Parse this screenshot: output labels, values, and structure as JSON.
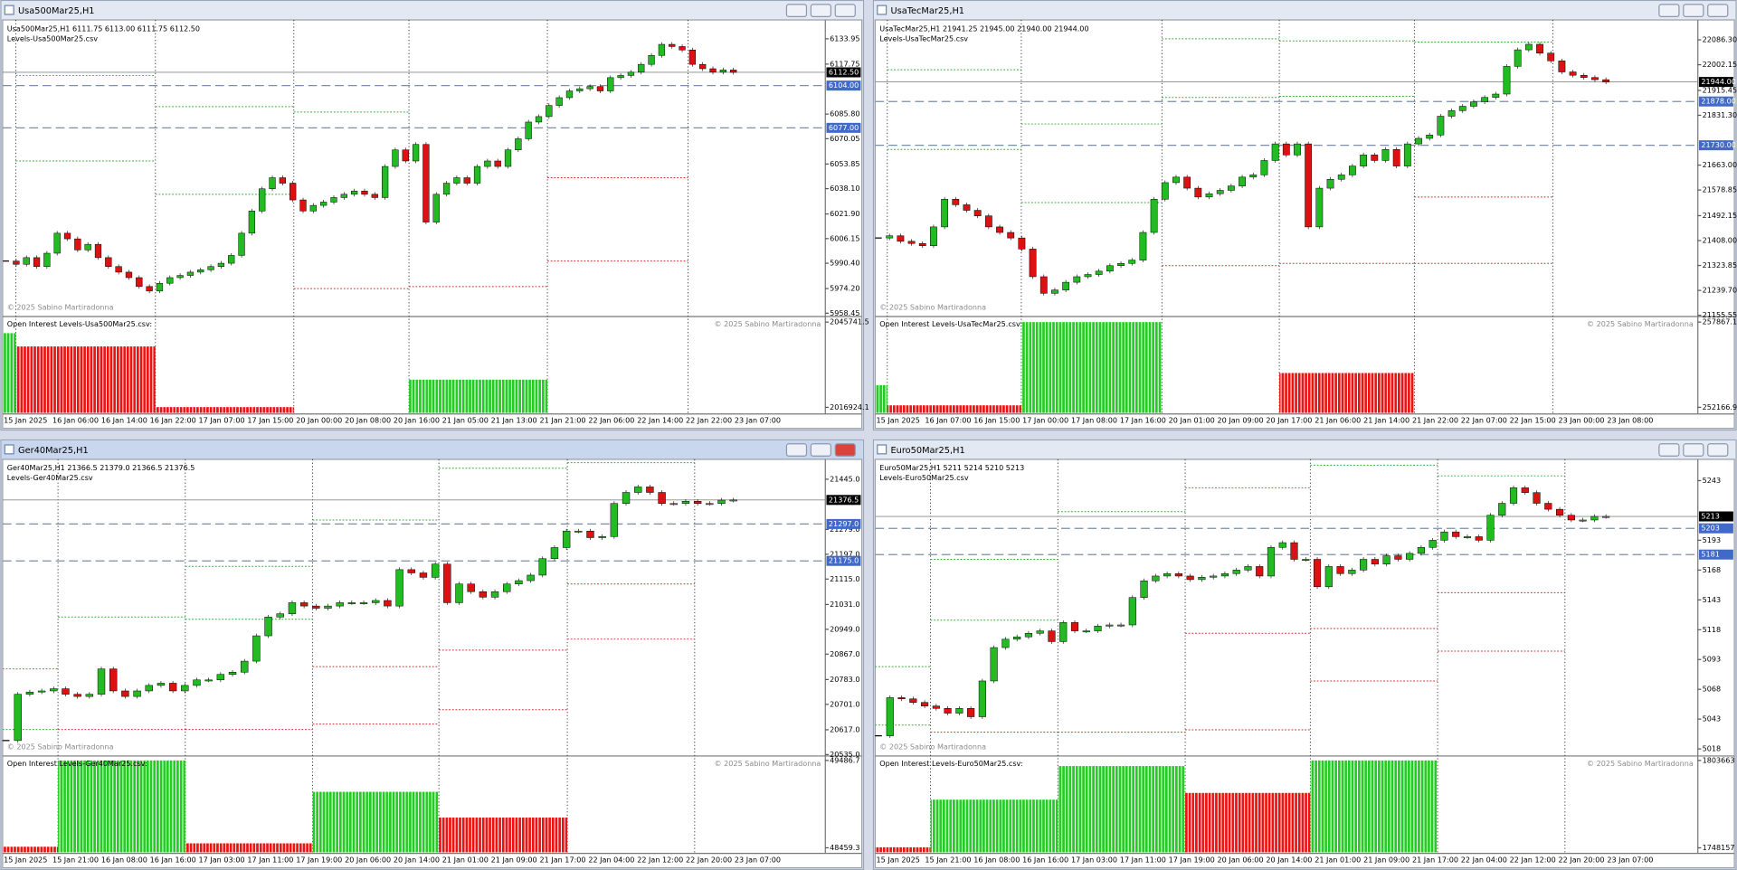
{
  "windows": [
    {
      "title": "Usa500Mar25,H1",
      "active": false,
      "chart_data": {
        "type": "candlestick",
        "header": "Usa500Mar25,H1  6111.75 6113.00 6111.75 6112.50",
        "subtitle": "Levels-Usa500Mar25.csv",
        "watermark": "© 2025 Sabino Martiradonna",
        "closes": [
          5991.8,
          5989.7,
          5994.0,
          5988.3,
          5996.8,
          6009.6,
          6006.0,
          5998.9,
          6002.5,
          5994.0,
          5988.3,
          5984.7,
          5981.2,
          5975.5,
          5972.6,
          5977.6,
          5981.2,
          5982.6,
          5984.7,
          5986.2,
          5988.3,
          5990.4,
          5995.4,
          6009.6,
          6023.8,
          6038.0,
          6045.1,
          6041.6,
          6030.9,
          6023.8,
          6027.4,
          6029.5,
          6032.4,
          6034.5,
          6036.6,
          6034.5,
          6032.4,
          6052.3,
          6062.9,
          6055.8,
          6066.4,
          6016.7,
          6034.5,
          6041.6,
          6045.1,
          6041.6,
          6052.3,
          6055.8,
          6052.3,
          6062.9,
          6070.0,
          6080.7,
          6084.2,
          6091.3,
          6096.3,
          6100.6,
          6102.0,
          6103.4,
          6100.6,
          6109.1,
          6110.5,
          6112.6,
          6117.6,
          6123.3,
          6130.4,
          6129.0,
          6126.8,
          6117.6,
          6114.8,
          6112.6,
          6114.0,
          6112.5
        ],
        "up_color": "#22bb22",
        "down_color": "#dd1111",
        "ylim": [
          5957.0,
          6144.6
        ],
        "yticks": [
          6133.95,
          6117.75,
          {
            "value": 6085.8,
            "label": "6085.80"
          },
          6070.05,
          6053.85,
          {
            "value": 6038.1,
            "label": "6038.10"
          },
          {
            "value": 6021.9,
            "label": "6021.90"
          },
          6006.15,
          {
            "value": 5990.4,
            "label": "5990.40"
          },
          {
            "value": 5974.2,
            "label": "5974.20"
          },
          5958.45
        ],
        "price_lines": [
          {
            "value": 6112.5,
            "label": "6112.50",
            "color": "#000000",
            "dashed": false
          },
          {
            "value": 6104,
            "label": "6104.00",
            "color": "#4169c8",
            "dashed": true
          },
          {
            "value": 6077,
            "label": "6077.00",
            "color": "#4169c8",
            "dashed": true
          }
        ],
        "levels": [
          {
            "color": "#3aa83a",
            "values": [
              6112.6,
              6110.5,
              6090.6,
              6087.1,
              null,
              null,
              null
            ]
          },
          {
            "color": "#3aa83a",
            "values": [
              null,
              6055.8,
              6034.5,
              null,
              null,
              null,
              null
            ]
          },
          {
            "color": "#cc3333",
            "values": [
              null,
              null,
              null,
              5974.2,
              5975.5,
              6045.1,
              null
            ]
          },
          {
            "color": "#cc3333",
            "values": [
              null,
              null,
              null,
              null,
              null,
              5991.8,
              null
            ]
          }
        ],
        "time_labels": [
          "15 Jan 2025",
          "16 Jan 06:00",
          "16 Jan 14:00",
          "16 Jan 22:00",
          "17 Jan 07:00",
          "17 Jan 15:00",
          "20 Jan 00:00",
          "20 Jan 08:00",
          "20 Jan 16:00",
          "21 Jan 05:00",
          "21 Jan 13:00",
          "21 Jan 21:00",
          "22 Jan 06:00",
          "22 Jan 14:00",
          "22 Jan 22:00",
          "23 Jan 07:00"
        ],
        "oi": {
          "label": "Open Interest Levels-Usa500Mar25.csv:",
          "watermark": "© 2025 Sabino Martiradonna",
          "ylim": [
            2015053,
            2047238
          ],
          "yticks": [
            2045741.5,
            2016924.1
          ],
          "values": [
            2042000,
            2037508,
            2017000,
            null,
            2026280,
            null,
            null
          ],
          "colors": [
            "#22cc22",
            "#ee1111",
            "#ee1111",
            null,
            "#22cc22",
            null,
            null
          ]
        }
      }
    },
    {
      "title": "UsaTecMar25,H1",
      "active": false,
      "chart_data": {
        "type": "candlestick",
        "header": "UsaTecMar25,H1  21941.25 21945.00 21940.00 21944.00",
        "subtitle": "Levels-UsaTecMar25.csv",
        "watermark": "© 2025 Sabino Martiradonna",
        "closes": [
          21416.8,
          21424.3,
          21405.6,
          21398.1,
          21390.7,
          21454.2,
          21547.7,
          21529.0,
          21510.3,
          21491.6,
          21454.2,
          21435.5,
          21416.8,
          21379.4,
          21285.9,
          21229.8,
          21241.1,
          21267.2,
          21285.9,
          21293.4,
          21304.7,
          21323.3,
          21330.8,
          21342.1,
          21435.5,
          21547.7,
          21603.8,
          21622.5,
          21585.1,
          21555.2,
          21566.4,
          21577.7,
          21592.6,
          21622.5,
          21630.0,
          21678.6,
          21734.7,
          21697.3,
          21734.7,
          21454.2,
          21585.1,
          21615.1,
          21630.0,
          21659.9,
          21697.3,
          21678.6,
          21716.0,
          21659.9,
          21734.7,
          21753.4,
          21764.7,
          21828.2,
          21847.0,
          21861.9,
          21876.9,
          21891.8,
          21903.1,
          21996.6,
          22052.6,
          22071.3,
          22041.4,
          22015.2,
          21977.9,
          21966.6,
          21959.1,
          21951.7,
          21944.0
        ],
        "up_color": "#22bb22",
        "down_color": "#dd1111",
        "ylim": [
          21155.0,
          22146.1
        ],
        "yticks": [
          {
            "value": 22086.3,
            "label": "22086.30"
          },
          22002.15,
          21915.45,
          {
            "value": 21831.3,
            "label": "21831.30"
          },
          {
            "value": 21663,
            "label": "21663.00"
          },
          21578.85,
          21492.15,
          {
            "value": 21408,
            "label": "21408.00"
          },
          21323.85,
          {
            "value": 21239.7,
            "label": "21239.70"
          },
          21155.55
        ],
        "price_lines": [
          {
            "value": 21944,
            "label": "21944.00",
            "color": "#000000",
            "dashed": false
          },
          {
            "value": 21878,
            "label": "21878.00",
            "color": "#4169c8",
            "dashed": true
          },
          {
            "value": 21730,
            "label": "21730.00",
            "color": "#4169c8",
            "dashed": true
          }
        ],
        "levels": [
          {
            "color": "#3aa83a",
            "values": [
              null,
              21985.3,
              21802.1,
              22090.0,
              22082.6,
              22078.8,
              null
            ]
          },
          {
            "color": "#3aa83a",
            "values": [
              null,
              21716.0,
              21536.5,
              21891.8,
              21895.5,
              null,
              null
            ]
          },
          {
            "color": "#cc3333",
            "values": [
              null,
              null,
              null,
              21323.3,
              21330.8,
              21555.2,
              null
            ]
          },
          {
            "color": "#cc3333",
            "values": [
              null,
              null,
              null,
              null,
              null,
              21330.8,
              null
            ]
          }
        ],
        "time_labels": [
          "15 Jan 2025",
          "16 Jan 07:00",
          "16 Jan 15:00",
          "17 Jan 00:00",
          "17 Jan 08:00",
          "17 Jan 16:00",
          "20 Jan 01:00",
          "20 Jan 09:00",
          "20 Jan 17:00",
          "21 Jan 06:00",
          "21 Jan 14:00",
          "21 Jan 22:00",
          "22 Jan 07:00",
          "22 Jan 15:00",
          "23 Jan 00:00",
          "23 Jan 08:00"
        ],
        "oi": {
          "label": "Open Interest Levels-UsaTecMar25.csv:",
          "watermark": "© 2025 Sabino Martiradonna",
          "ylim": [
            251797,
            258163
          ],
          "yticks": [
            257867.1,
            252166.9
          ],
          "values": [
            253647,
            252300,
            257867,
            null,
            254462,
            null,
            null
          ],
          "colors": [
            "#22cc22",
            "#ee1111",
            "#22cc22",
            null,
            "#ee1111",
            null,
            null
          ]
        }
      }
    },
    {
      "title": "Ger40Mar25,H1",
      "active": true,
      "chart_data": {
        "type": "candlestick",
        "header": "Ger40Mar25,H1  21366.5 21379.0 21366.5 21376.5",
        "subtitle": "Levels-Ger40Mar25.csv",
        "watermark": "© 2025 Sabino Martiradonna",
        "closes": [
          20581.4,
          20734.4,
          20741.7,
          20745.4,
          20752.6,
          20734.4,
          20727.1,
          20734.4,
          20818.2,
          20745.4,
          20727.1,
          20745.4,
          20763.6,
          20770.9,
          20745.4,
          20763.6,
          20781.8,
          20781.8,
          20800.0,
          20807.3,
          20843.7,
          20927.5,
          20989.5,
          21000.4,
          21036.9,
          21025.9,
          21018.6,
          21025.9,
          21036.9,
          21036.9,
          21036.9,
          21044.2,
          21025.9,
          21146.2,
          21135.3,
          21120.7,
          21164.4,
          21036.9,
          21098.8,
          21073.3,
          21055.1,
          21073.3,
          21098.8,
          21109.8,
          21128.0,
          21182.6,
          21219.1,
          21273.7,
          21273.7,
          21251.9,
          21255.5,
          21364.8,
          21401.3,
          21419.5,
          21401.3,
          21364.8,
          21364.8,
          21372.1,
          21364.8,
          21364.8,
          21375.8,
          21376.5
        ],
        "up_color": "#22bb22",
        "down_color": "#dd1111",
        "ylim": [
          20534.0,
          21503.3
        ],
        "yticks": [
          {
            "value": 21445,
            "label": "21445.0"
          },
          {
            "value": 21279,
            "label": "21279.0"
          },
          {
            "value": 21197,
            "label": "21197.0"
          },
          {
            "value": 21115,
            "label": "21115.0"
          },
          {
            "value": 21031,
            "label": "21031.0"
          },
          {
            "value": 20949,
            "label": "20949.0"
          },
          {
            "value": 20867,
            "label": "20867.0"
          },
          {
            "value": 20783,
            "label": "20783.0"
          },
          {
            "value": 20701,
            "label": "20701.0"
          },
          {
            "value": 20617,
            "label": "20617.0"
          },
          {
            "value": 20535,
            "label": "20535.0"
          }
        ],
        "price_lines": [
          {
            "value": 21376.5,
            "label": "21376.5",
            "color": "#000000",
            "dashed": false
          },
          {
            "value": 21297,
            "label": "21297.0",
            "color": "#4169c8",
            "dashed": true
          },
          {
            "value": 21175,
            "label": "21175.0",
            "color": "#4169c8",
            "dashed": true
          }
        ],
        "levels": [
          {
            "color": "#3aa83a",
            "values": [
              20818.2,
              20989.5,
              21157.1,
              21310.2,
              21481.4,
              21499.7,
              null
            ]
          },
          {
            "color": "#3aa83a",
            "values": [
              20617.8,
              null,
              20982.2,
              null,
              null,
              null,
              null
            ]
          },
          {
            "color": "#cc3333",
            "values": [
              null,
              null,
              null,
              20825.5,
              20880.2,
              21098.8,
              null
            ]
          },
          {
            "color": "#cc3333",
            "values": [
              null,
              20617.8,
              20617.8,
              20636.0,
              20683.4,
              20916.6,
              null
            ]
          }
        ],
        "time_labels": [
          "15 Jan 2025",
          "15 Jan 21:00",
          "16 Jan 08:00",
          "16 Jan 16:00",
          "17 Jan 03:00",
          "17 Jan 11:00",
          "17 Jan 19:00",
          "20 Jan 06:00",
          "20 Jan 14:00",
          "21 Jan 01:00",
          "21 Jan 09:00",
          "21 Jan 17:00",
          "22 Jan 04:00",
          "22 Jan 12:00",
          "22 Jan 20:00",
          "23 Jan 07:00"
        ],
        "oi": {
          "label": "Open Interest Levels-Ger40Mar25.csv:",
          "watermark": "© 2025 Sabino Martiradonna",
          "ylim": [
            48406.6,
            49526.2
          ],
          "yticks": [
            49486.7,
            48459.3
          ],
          "values": [
            48472,
            49486.7,
            48512,
            49118,
            48815,
            null,
            null
          ],
          "colors": [
            "#ee1111",
            "#22cc22",
            "#ee1111",
            "#22cc22",
            "#ee1111",
            null,
            null
          ]
        }
      }
    },
    {
      "title": "Euro50Mar25,H1",
      "active": false,
      "chart_data": {
        "type": "candlestick",
        "header": "Euro50Mar25,H1  5211 5214 5210 5213",
        "subtitle": "Levels-Euro50Mar25.csv",
        "watermark": "© 2025 Sabino Martiradonna",
        "closes": [
          5029,
          5061,
          5060,
          5057,
          5054,
          5052,
          5048,
          5052,
          5045,
          5075,
          5103,
          5110,
          5112,
          5115,
          5117,
          5108,
          5124,
          5117,
          5117,
          5121,
          5122,
          5122,
          5145,
          5159,
          5163,
          5165,
          5163,
          5160,
          5162,
          5163,
          5165,
          5168,
          5171,
          5163,
          5187,
          5191,
          5177,
          5177,
          5154,
          5171,
          5165,
          5168,
          5177,
          5173,
          5180,
          5177,
          5182,
          5187,
          5193,
          5200,
          5196,
          5196,
          5193,
          5214,
          5224,
          5237,
          5233,
          5224,
          5219,
          5214,
          5210,
          5210,
          5213,
          5213
        ],
        "up_color": "#22bb22",
        "down_color": "#dd1111",
        "ylim": [
          5013,
          5259
        ],
        "yticks": [
          5243,
          5193,
          5168,
          5143,
          5118,
          5093,
          5068,
          5043,
          5018
        ],
        "price_lines": [
          {
            "value": 5213,
            "label": "5213",
            "color": "#000000",
            "dashed": false
          },
          {
            "value": 5203,
            "label": "5203",
            "color": "#4169c8",
            "dashed": true
          },
          {
            "value": 5181,
            "label": "5181",
            "color": "#4169c8",
            "dashed": true
          }
        ],
        "levels": [
          {
            "color": "#3aa83a",
            "values": [
              5087,
              5177,
              5217,
              5237,
              5256,
              5247,
              null
            ]
          },
          {
            "color": "#3aa83a",
            "values": [
              5038,
              5126,
              null,
              null,
              null,
              null,
              null
            ]
          },
          {
            "color": "#cc3333",
            "values": [
              null,
              null,
              null,
              5115,
              5119,
              5149,
              null
            ]
          },
          {
            "color": "#cc3333",
            "values": [
              null,
              5032,
              5032,
              5034,
              5075,
              5100,
              null
            ]
          }
        ],
        "time_labels": [
          "15 Jan 2025",
          "15 Jan 21:00",
          "16 Jan 08:00",
          "16 Jan 16:00",
          "17 Jan 03:00",
          "17 Jan 11:00",
          "17 Jan 19:00",
          "20 Jan 06:00",
          "20 Jan 14:00",
          "21 Jan 01:00",
          "21 Jan 09:00",
          "21 Jan 17:00",
          "22 Jan 04:00",
          "22 Jan 12:00",
          "22 Jan 20:00",
          "23 Jan 07:00"
        ],
        "oi": {
          "label": "Open Interest Levels-Euro50Mar25.csv:",
          "watermark": "© 2025 Sabino Martiradonna",
          "ylim": [
            1745311,
            1805798
          ],
          "yticks": [
            1803663,
            1748157
          ],
          "values": [
            1748500,
            1778756,
            1800105,
            1783027,
            1803663,
            null,
            null
          ],
          "colors": [
            "#ee1111",
            "#22cc22",
            "#22cc22",
            "#ee1111",
            "#22cc22",
            null,
            null
          ]
        }
      }
    }
  ]
}
